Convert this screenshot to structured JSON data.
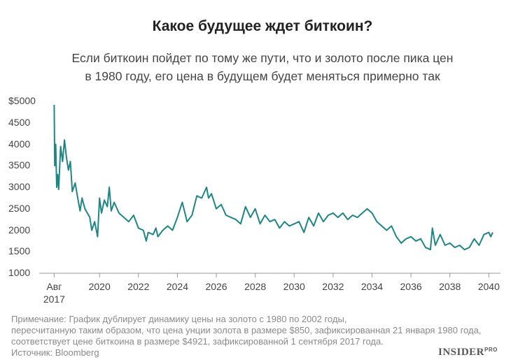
{
  "chart_data": {
    "type": "line",
    "title": "Какое будущее ждет биткоин?",
    "subtitle": "Если биткоин пойдет по тому же пути, что и золото после пика цен\nв 1980 году, его цена в будущем будет меняться примерно так",
    "note": "Примечание: График дублирует динамику цены на золото с 1980 по 2002 годы,\nпересчитанную таким образом, что цена унции золота в размере $850, зафиксированная 21 января 1980 года,\nсоответствует цене биткоина в размере $4921, зафиксированной 1 сентября 2017 года.",
    "source": "Источник: Bloomberg",
    "logo": "INSIDER",
    "logo_suffix": "PRO",
    "xlim": [
      2016.9,
      2040.6
    ],
    "ylim": [
      1000,
      5000
    ],
    "xticks": [
      {
        "value": 2017.67,
        "label": "Авг\n2017"
      },
      2020,
      2022,
      2024,
      2026,
      2028,
      2030,
      2032,
      2034,
      2036,
      2038,
      2040
    ],
    "yticks": [
      {
        "value": 5000,
        "label": "$5000"
      },
      4500,
      4000,
      3500,
      3000,
      2500,
      2000,
      1500,
      1000
    ],
    "grid": false,
    "series": [
      {
        "color": "#1f8585",
        "x": [
          2017.67,
          2017.7,
          2017.75,
          2017.8,
          2017.85,
          2017.9,
          2018.0,
          2018.1,
          2018.2,
          2018.3,
          2018.4,
          2018.5,
          2018.6,
          2018.75,
          2018.9,
          2019.0,
          2019.1,
          2019.25,
          2019.5,
          2019.6,
          2019.75,
          2019.9,
          2020.0,
          2020.1,
          2020.25,
          2020.4,
          2020.5,
          2020.6,
          2020.75,
          2021.0,
          2021.25,
          2021.5,
          2021.75,
          2022.0,
          2022.25,
          2022.4,
          2022.5,
          2022.75,
          2022.9,
          2023.0,
          2023.25,
          2023.5,
          2023.75,
          2024.0,
          2024.25,
          2024.5,
          2024.75,
          2025.0,
          2025.25,
          2025.5,
          2025.6,
          2025.75,
          2026.0,
          2026.25,
          2026.5,
          2026.75,
          2027.0,
          2027.25,
          2027.5,
          2027.75,
          2028.0,
          2028.25,
          2028.5,
          2028.75,
          2029.0,
          2029.25,
          2029.5,
          2029.75,
          2030.0,
          2030.25,
          2030.5,
          2030.75,
          2031.0,
          2031.25,
          2031.5,
          2031.75,
          2032.0,
          2032.25,
          2032.5,
          2032.75,
          2033.0,
          2033.25,
          2033.5,
          2033.75,
          2034.0,
          2034.25,
          2034.5,
          2034.75,
          2035.0,
          2035.25,
          2035.5,
          2035.75,
          2036.0,
          2036.25,
          2036.5,
          2036.75,
          2037.0,
          2037.1,
          2037.25,
          2037.5,
          2037.75,
          2038.0,
          2038.25,
          2038.5,
          2038.75,
          2039.0,
          2039.25,
          2039.5,
          2039.75,
          2040.0,
          2040.1,
          2040.2
        ],
        "values": [
          4921,
          3500,
          4000,
          3000,
          3300,
          2950,
          3950,
          3600,
          4100,
          3700,
          3400,
          3600,
          2900,
          3100,
          2700,
          2450,
          2750,
          2500,
          2300,
          2000,
          2200,
          1850,
          2750,
          2400,
          2700,
          2550,
          3000,
          2450,
          2650,
          2400,
          2300,
          2200,
          2350,
          2050,
          2000,
          1750,
          1950,
          1900,
          2050,
          1850,
          2000,
          2100,
          2000,
          2300,
          2650,
          2200,
          2350,
          2800,
          2750,
          3000,
          2750,
          2850,
          2500,
          2600,
          2350,
          2300,
          2250,
          2150,
          2550,
          2300,
          2500,
          2150,
          2350,
          2200,
          2250,
          2050,
          2200,
          2100,
          2150,
          2200,
          1950,
          2300,
          2100,
          2400,
          2200,
          2350,
          2400,
          2300,
          2400,
          2250,
          2350,
          2300,
          2400,
          2500,
          2400,
          2200,
          2100,
          2000,
          2100,
          1850,
          1700,
          1800,
          1850,
          1750,
          1800,
          1600,
          1550,
          2050,
          1650,
          1900,
          1650,
          1700,
          1600,
          1650,
          1550,
          1600,
          1800,
          1650,
          1900,
          1950,
          1850,
          1950
        ]
      }
    ]
  }
}
